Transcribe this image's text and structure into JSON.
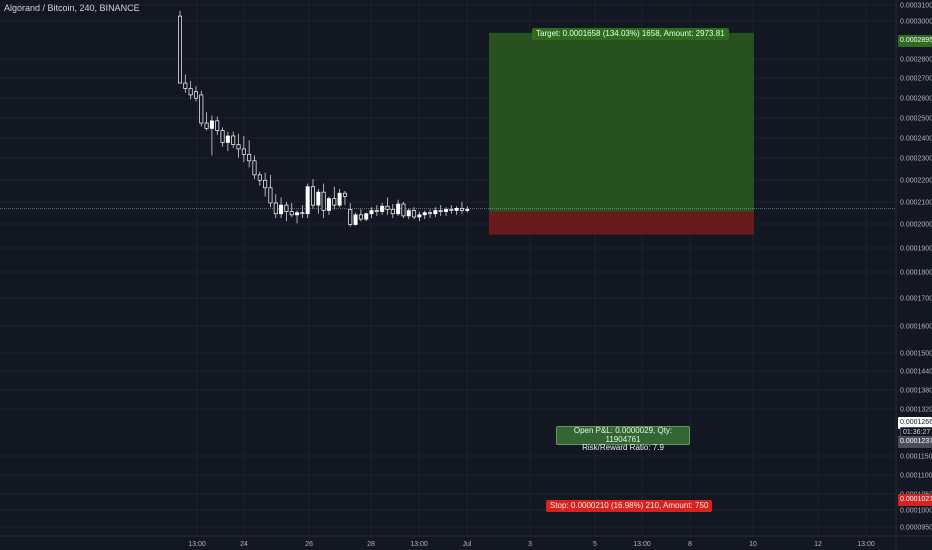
{
  "header": {
    "symbol_title": "Algorand / Bitcoin, 240, BINANCE"
  },
  "colors": {
    "background": "#131722",
    "grid": "#1e2230",
    "candle_body": "#ffffff",
    "target_zone": "#285420",
    "stop_zone": "#6e1a1b",
    "target_label_bg": "#2e6b1f",
    "stop_label_bg": "#d9211e",
    "current_price_line": "#9598a1"
  },
  "position": {
    "target_label": "Target: 0.0001658 (134.03%) 1658, Amount: 2973.81",
    "stop_label": "Stop: 0.0000210 (16.98%) 210, Amount: 750",
    "pnl_line1": "Open P&L: 0.0000029, Qty: 11904761",
    "pnl_line2": "Risk/Reward Ratio: 7.9"
  },
  "price_axis_badges": {
    "target": "0.0002895",
    "current_price": "0.0001266",
    "countdown": "01:36:27",
    "entry": "0.0001237",
    "stop": "0.0001027"
  },
  "chart_data": {
    "type": "candlestick",
    "title": "Algorand / Bitcoin, 240, BINANCE",
    "ylim": [
      9.3e-05,
      0.00031
    ],
    "y_ticks": [
      "0.0003100",
      "0.0003000",
      "0.0002800",
      "0.0002700",
      "0.0002600",
      "0.0002500",
      "0.0002400",
      "0.0002300",
      "0.0002200",
      "0.0002100",
      "0.0002000",
      "0.0001900",
      "0.0001800",
      "0.0001700",
      "0.0001600",
      "0.0001500",
      "0.0001440",
      "0.0001380",
      "0.0001320",
      "0.0001150",
      "0.0001100",
      "0.0001050",
      "0.0001000",
      "0.0000950"
    ],
    "x_tick_labels": [
      "13:00",
      "24",
      "26",
      "28",
      "13:00",
      "Jul",
      "3",
      "5",
      "13:00",
      "8",
      "10",
      "12",
      "13:00"
    ],
    "candles": [
      {
        "o": 0.000305,
        "h": 0.00031,
        "l": 0.000243,
        "c": 0.000243
      },
      {
        "o": 0.000243,
        "h": 0.000251,
        "l": 0.000234,
        "c": 0.000238
      },
      {
        "o": 0.000238,
        "h": 0.000245,
        "l": 0.000228,
        "c": 0.000232
      },
      {
        "o": 0.000235,
        "h": 0.00024,
        "l": 0.000226,
        "c": 0.000229
      },
      {
        "o": 0.000232,
        "h": 0.000236,
        "l": 0.000203,
        "c": 0.000206
      },
      {
        "o": 0.000206,
        "h": 0.000216,
        "l": 0.000199,
        "c": 0.000201
      },
      {
        "o": 0.000201,
        "h": 0.000213,
        "l": 0.000176,
        "c": 0.000208
      },
      {
        "o": 0.000208,
        "h": 0.000212,
        "l": 0.000195,
        "c": 0.000199
      },
      {
        "o": 0.000199,
        "h": 0.000202,
        "l": 0.000184,
        "c": 0.000188
      },
      {
        "o": 0.000188,
        "h": 0.000198,
        "l": 0.00018,
        "c": 0.000194
      },
      {
        "o": 0.000194,
        "h": 0.000198,
        "l": 0.000183,
        "c": 0.000186
      },
      {
        "o": 0.000186,
        "h": 0.000196,
        "l": 0.000174,
        "c": 0.000182
      },
      {
        "o": 0.000182,
        "h": 0.000194,
        "l": 0.00017,
        "c": 0.000177
      },
      {
        "o": 0.000177,
        "h": 0.00019,
        "l": 0.000165,
        "c": 0.000171
      },
      {
        "o": 0.000171,
        "h": 0.000176,
        "l": 0.000154,
        "c": 0.000158
      },
      {
        "o": 0.000158,
        "h": 0.000161,
        "l": 0.000148,
        "c": 0.000153
      },
      {
        "o": 0.000153,
        "h": 0.00016,
        "l": 0.000138,
        "c": 0.000146
      },
      {
        "o": 0.000146,
        "h": 0.000158,
        "l": 0.000128,
        "c": 0.000132
      },
      {
        "o": 0.000132,
        "h": 0.00014,
        "l": 0.000118,
        "c": 0.000122
      },
      {
        "o": 0.000122,
        "h": 0.000137,
        "l": 0.000118,
        "c": 0.00013
      },
      {
        "o": 0.00013,
        "h": 0.000133,
        "l": 0.000115,
        "c": 0.000124
      },
      {
        "o": 0.000124,
        "h": 0.000132,
        "l": 0.000119,
        "c": 0.000121
      },
      {
        "o": 0.000121,
        "h": 0.000125,
        "l": 0.000113,
        "c": 0.000123
      },
      {
        "o": 0.000123,
        "h": 0.00013,
        "l": 0.000118,
        "c": 0.000122
      },
      {
        "o": 0.000122,
        "h": 0.00015,
        "l": 0.000118,
        "c": 0.000147
      },
      {
        "o": 0.000147,
        "h": 0.000154,
        "l": 0.000127,
        "c": 0.00013
      },
      {
        "o": 0.00013,
        "h": 0.000145,
        "l": 0.000122,
        "c": 0.000142
      },
      {
        "o": 0.000142,
        "h": 0.00015,
        "l": 0.000118,
        "c": 0.000125
      },
      {
        "o": 0.000125,
        "h": 0.000138,
        "l": 0.000121,
        "c": 0.000136
      },
      {
        "o": 0.000136,
        "h": 0.000147,
        "l": 0.000126,
        "c": 0.00013
      },
      {
        "o": 0.00013,
        "h": 0.000145,
        "l": 0.000128,
        "c": 0.000141
      },
      {
        "o": 0.000141,
        "h": 0.000143,
        "l": 0.00013,
        "c": 0.000138
      },
      {
        "o": 0.000126,
        "h": 0.000132,
        "l": 0.00011,
        "c": 0.000112
      },
      {
        "o": 0.000112,
        "h": 0.000123,
        "l": 0.000111,
        "c": 0.000121
      },
      {
        "o": 0.000121,
        "h": 0.000126,
        "l": 0.000115,
        "c": 0.000117
      },
      {
        "o": 0.000117,
        "h": 0.000123,
        "l": 0.000115,
        "c": 0.000122
      },
      {
        "o": 0.000122,
        "h": 0.000128,
        "l": 0.000118,
        "c": 0.000125
      },
      {
        "o": 0.000125,
        "h": 0.00013,
        "l": 0.00012,
        "c": 0.000124
      },
      {
        "o": 0.000124,
        "h": 0.000132,
        "l": 0.000121,
        "c": 0.000129
      },
      {
        "o": 0.000129,
        "h": 0.000137,
        "l": 0.000121,
        "c": 0.000126
      },
      {
        "o": 0.000126,
        "h": 0.000131,
        "l": 0.000118,
        "c": 0.000122
      },
      {
        "o": 0.000122,
        "h": 0.000135,
        "l": 0.00012,
        "c": 0.000131
      },
      {
        "o": 0.000131,
        "h": 0.000133,
        "l": 0.000118,
        "c": 0.00012
      },
      {
        "o": 0.00012,
        "h": 0.000127,
        "l": 0.000117,
        "c": 0.000125
      },
      {
        "o": 0.000125,
        "h": 0.000128,
        "l": 0.000117,
        "c": 0.000119
      },
      {
        "o": 0.000119,
        "h": 0.000124,
        "l": 0.000115,
        "c": 0.000121
      },
      {
        "o": 0.000121,
        "h": 0.000125,
        "l": 0.000117,
        "c": 0.000123
      },
      {
        "o": 0.000123,
        "h": 0.000126,
        "l": 0.000118,
        "c": 0.000122
      },
      {
        "o": 0.000122,
        "h": 0.000128,
        "l": 0.000119,
        "c": 0.000125
      },
      {
        "o": 0.000125,
        "h": 0.00013,
        "l": 0.00012,
        "c": 0.000124
      },
      {
        "o": 0.000124,
        "h": 0.000128,
        "l": 0.00012,
        "c": 0.000126
      },
      {
        "o": 0.000126,
        "h": 0.00013,
        "l": 0.000122,
        "c": 0.000125
      },
      {
        "o": 0.000125,
        "h": 0.000129,
        "l": 0.000121,
        "c": 0.000127
      },
      {
        "o": 0.000127,
        "h": 0.000133,
        "l": 0.000122,
        "c": 0.000125
      },
      {
        "o": 0.000125,
        "h": 0.000129,
        "l": 0.000123,
        "c": 0.000126
      }
    ],
    "entry_price": 0.0001237,
    "target_price": 0.0002895,
    "stop_price": 0.0001027,
    "current_price": 0.0001266,
    "grid": true
  }
}
